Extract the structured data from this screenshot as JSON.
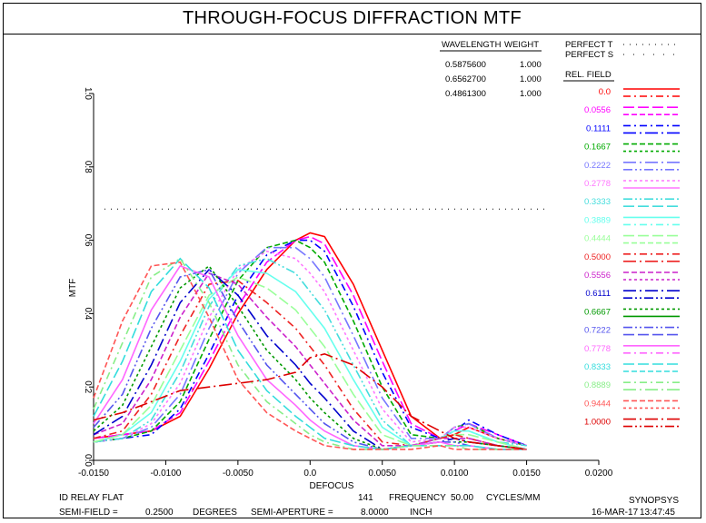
{
  "title": "THROUGH-FOCUS DIFFRACTION MTF",
  "chart_data": {
    "type": "line",
    "xlabel": "DEFOCUS",
    "ylabel": "MTF",
    "xlim": [
      -0.015,
      0.02
    ],
    "ylim": [
      0,
      1.0
    ],
    "x_ticks": [
      "-0.0150",
      "-0.0100",
      "-0.0050",
      "0.0",
      "0.0050",
      "0.0100",
      "0.0150",
      "0.0200"
    ],
    "y_ticks": [
      "0.0",
      "0.2",
      "0.4",
      "0.6",
      "0.8",
      "1.0"
    ],
    "perfect_level": 0.685,
    "series": [
      {
        "field": "0.0",
        "color": "#ff0000",
        "x": [
          -0.015,
          -0.013,
          -0.011,
          -0.009,
          -0.007,
          -0.005,
          -0.003,
          -0.001,
          0.0,
          0.001,
          0.003,
          0.005,
          0.007,
          0.009,
          0.01,
          0.011,
          0.013,
          0.015
        ],
        "y": [
          0.06,
          0.07,
          0.08,
          0.12,
          0.25,
          0.4,
          0.52,
          0.6,
          0.62,
          0.61,
          0.48,
          0.3,
          0.12,
          0.06,
          0.07,
          0.09,
          0.06,
          0.04
        ]
      },
      {
        "field": "0.0556",
        "color": "#ff00ff",
        "x": [
          -0.015,
          -0.013,
          -0.011,
          -0.009,
          -0.007,
          -0.005,
          -0.003,
          -0.001,
          0.0,
          0.001,
          0.003,
          0.005,
          0.007,
          0.009,
          0.01,
          0.011,
          0.013,
          0.015
        ],
        "y": [
          0.06,
          0.07,
          0.08,
          0.13,
          0.27,
          0.42,
          0.54,
          0.6,
          0.61,
          0.59,
          0.45,
          0.27,
          0.1,
          0.06,
          0.08,
          0.1,
          0.07,
          0.04
        ]
      },
      {
        "field": "0.1111",
        "color": "#0000ff",
        "x": [
          -0.015,
          -0.013,
          -0.011,
          -0.009,
          -0.007,
          -0.005,
          -0.003,
          -0.001,
          0.0,
          0.001,
          0.003,
          0.005,
          0.007,
          0.009,
          0.01,
          0.011,
          0.013,
          0.015
        ],
        "y": [
          0.05,
          0.06,
          0.07,
          0.14,
          0.29,
          0.45,
          0.56,
          0.6,
          0.6,
          0.57,
          0.42,
          0.24,
          0.09,
          0.06,
          0.08,
          0.11,
          0.07,
          0.04
        ]
      },
      {
        "field": "0.1667",
        "color": "#00aa00",
        "x": [
          -0.015,
          -0.013,
          -0.011,
          -0.009,
          -0.007,
          -0.005,
          -0.003,
          -0.001,
          0.0,
          0.001,
          0.003,
          0.005,
          0.007,
          0.009,
          0.01,
          0.011,
          0.013,
          0.015
        ],
        "y": [
          0.05,
          0.06,
          0.08,
          0.16,
          0.33,
          0.49,
          0.58,
          0.6,
          0.58,
          0.54,
          0.38,
          0.2,
          0.07,
          0.06,
          0.09,
          0.1,
          0.06,
          0.04
        ]
      },
      {
        "field": "0.2222",
        "color": "#7777ff",
        "x": [
          -0.015,
          -0.013,
          -0.011,
          -0.009,
          -0.007,
          -0.005,
          -0.003,
          -0.001,
          0.0,
          0.001,
          0.003,
          0.005,
          0.007,
          0.009,
          0.01,
          0.011,
          0.013,
          0.015
        ],
        "y": [
          0.05,
          0.06,
          0.09,
          0.18,
          0.36,
          0.51,
          0.58,
          0.58,
          0.55,
          0.5,
          0.34,
          0.17,
          0.06,
          0.06,
          0.09,
          0.1,
          0.06,
          0.04
        ]
      },
      {
        "field": "0.2778",
        "color": "#ff77ff",
        "x": [
          -0.015,
          -0.013,
          -0.011,
          -0.009,
          -0.007,
          -0.005,
          -0.003,
          -0.001,
          0.0,
          0.001,
          0.003,
          0.005,
          0.007,
          0.009,
          0.01,
          0.011,
          0.013,
          0.015
        ],
        "y": [
          0.05,
          0.06,
          0.1,
          0.21,
          0.39,
          0.52,
          0.57,
          0.55,
          0.51,
          0.46,
          0.3,
          0.14,
          0.05,
          0.06,
          0.09,
          0.09,
          0.06,
          0.04
        ]
      },
      {
        "field": "0.3333",
        "color": "#44dddd",
        "x": [
          -0.015,
          -0.013,
          -0.011,
          -0.009,
          -0.007,
          -0.005,
          -0.003,
          -0.001,
          0.0,
          0.001,
          0.003,
          0.005,
          0.007,
          0.009,
          0.01,
          0.011,
          0.013,
          0.015
        ],
        "y": [
          0.05,
          0.06,
          0.11,
          0.24,
          0.42,
          0.53,
          0.55,
          0.51,
          0.46,
          0.41,
          0.26,
          0.11,
          0.04,
          0.06,
          0.08,
          0.08,
          0.05,
          0.04
        ]
      },
      {
        "field": "0.3889",
        "color": "#66ffee",
        "x": [
          -0.015,
          -0.013,
          -0.011,
          -0.009,
          -0.007,
          -0.005,
          -0.003,
          -0.001,
          0.0,
          0.001,
          0.003,
          0.005,
          0.007,
          0.009,
          0.01,
          0.011,
          0.013,
          0.015
        ],
        "y": [
          0.05,
          0.07,
          0.13,
          0.27,
          0.44,
          0.52,
          0.51,
          0.46,
          0.41,
          0.36,
          0.22,
          0.09,
          0.04,
          0.06,
          0.08,
          0.08,
          0.05,
          0.03
        ]
      },
      {
        "field": "0.4444",
        "color": "#99ff99",
        "x": [
          -0.015,
          -0.013,
          -0.011,
          -0.009,
          -0.007,
          -0.005,
          -0.003,
          -0.001,
          0.0,
          0.001,
          0.003,
          0.005,
          0.007,
          0.009,
          0.01,
          0.011,
          0.013,
          0.015
        ],
        "y": [
          0.05,
          0.07,
          0.15,
          0.3,
          0.45,
          0.5,
          0.47,
          0.41,
          0.36,
          0.31,
          0.18,
          0.07,
          0.04,
          0.06,
          0.07,
          0.07,
          0.05,
          0.03
        ]
      },
      {
        "field": "0.5000",
        "color": "#ee2222",
        "x": [
          -0.015,
          -0.013,
          -0.011,
          -0.009,
          -0.007,
          -0.005,
          -0.003,
          -0.001,
          0.0,
          0.001,
          0.003,
          0.005,
          0.007,
          0.009,
          0.01,
          0.011,
          0.013,
          0.015
        ],
        "y": [
          0.06,
          0.08,
          0.18,
          0.34,
          0.48,
          0.49,
          0.43,
          0.36,
          0.31,
          0.26,
          0.14,
          0.05,
          0.04,
          0.06,
          0.07,
          0.06,
          0.04,
          0.03
        ]
      },
      {
        "field": "0.5556",
        "color": "#cc22cc",
        "x": [
          -0.015,
          -0.013,
          -0.011,
          -0.009,
          -0.007,
          -0.005,
          -0.003,
          -0.001,
          0.0,
          0.001,
          0.003,
          0.005,
          0.007,
          0.009,
          0.01,
          0.011,
          0.013,
          0.015
        ],
        "y": [
          0.07,
          0.1,
          0.22,
          0.39,
          0.51,
          0.48,
          0.39,
          0.31,
          0.26,
          0.21,
          0.11,
          0.04,
          0.04,
          0.06,
          0.06,
          0.06,
          0.04,
          0.03
        ]
      },
      {
        "field": "0.6111",
        "color": "#0000cc",
        "x": [
          -0.015,
          -0.013,
          -0.011,
          -0.009,
          -0.007,
          -0.005,
          -0.003,
          -0.001,
          0.0,
          0.001,
          0.003,
          0.005,
          0.007,
          0.009,
          0.01,
          0.011,
          0.013,
          0.015
        ],
        "y": [
          0.07,
          0.12,
          0.26,
          0.43,
          0.52,
          0.45,
          0.34,
          0.26,
          0.21,
          0.17,
          0.08,
          0.03,
          0.04,
          0.05,
          0.06,
          0.05,
          0.04,
          0.03
        ]
      },
      {
        "field": "0.6667",
        "color": "#009900",
        "x": [
          -0.015,
          -0.013,
          -0.011,
          -0.009,
          -0.007,
          -0.005,
          -0.003,
          -0.001,
          0.0,
          0.001,
          0.003,
          0.005,
          0.007,
          0.009,
          0.01,
          0.011,
          0.013,
          0.015
        ],
        "y": [
          0.08,
          0.15,
          0.31,
          0.47,
          0.53,
          0.42,
          0.3,
          0.22,
          0.17,
          0.13,
          0.06,
          0.03,
          0.04,
          0.05,
          0.05,
          0.05,
          0.04,
          0.03
        ]
      },
      {
        "field": "0.7222",
        "color": "#5555ee",
        "x": [
          -0.015,
          -0.013,
          -0.011,
          -0.009,
          -0.007,
          -0.005,
          -0.003,
          -0.001,
          0.0,
          0.001,
          0.003,
          0.005,
          0.007,
          0.009,
          0.01,
          0.011,
          0.013,
          0.015
        ],
        "y": [
          0.09,
          0.18,
          0.36,
          0.5,
          0.52,
          0.38,
          0.26,
          0.18,
          0.14,
          0.1,
          0.05,
          0.03,
          0.04,
          0.05,
          0.05,
          0.04,
          0.03,
          0.03
        ]
      },
      {
        "field": "0.7778",
        "color": "#ff66ff",
        "x": [
          -0.015,
          -0.013,
          -0.011,
          -0.009,
          -0.007,
          -0.005,
          -0.003,
          -0.001,
          0.0,
          0.001,
          0.003,
          0.005,
          0.007,
          0.009,
          0.01,
          0.011,
          0.013,
          0.015
        ],
        "y": [
          0.1,
          0.22,
          0.41,
          0.53,
          0.5,
          0.34,
          0.22,
          0.15,
          0.11,
          0.08,
          0.04,
          0.03,
          0.04,
          0.05,
          0.04,
          0.04,
          0.03,
          0.03
        ]
      },
      {
        "field": "0.8333",
        "color": "#33dddd",
        "x": [
          -0.015,
          -0.013,
          -0.011,
          -0.009,
          -0.007,
          -0.005,
          -0.003,
          -0.001,
          0.0,
          0.001,
          0.003,
          0.005,
          0.007,
          0.009,
          0.01,
          0.011,
          0.013,
          0.015
        ],
        "y": [
          0.12,
          0.27,
          0.46,
          0.55,
          0.47,
          0.3,
          0.19,
          0.12,
          0.09,
          0.06,
          0.04,
          0.03,
          0.04,
          0.04,
          0.04,
          0.04,
          0.03,
          0.03
        ]
      },
      {
        "field": "0.8889",
        "color": "#88ee88",
        "x": [
          -0.015,
          -0.013,
          -0.011,
          -0.009,
          -0.007,
          -0.005,
          -0.003,
          -0.001,
          0.0,
          0.001,
          0.003,
          0.005,
          0.007,
          0.009,
          0.01,
          0.011,
          0.013,
          0.015
        ],
        "y": [
          0.14,
          0.32,
          0.5,
          0.55,
          0.43,
          0.26,
          0.16,
          0.1,
          0.07,
          0.05,
          0.03,
          0.03,
          0.04,
          0.04,
          0.04,
          0.03,
          0.03,
          0.03
        ]
      },
      {
        "field": "0.9444",
        "color": "#ff5555",
        "x": [
          -0.015,
          -0.013,
          -0.011,
          -0.009,
          -0.007,
          -0.005,
          -0.003,
          -0.001,
          0.0,
          0.001,
          0.003,
          0.005,
          0.007,
          0.009,
          0.01,
          0.011,
          0.013,
          0.015
        ],
        "y": [
          0.17,
          0.38,
          0.53,
          0.54,
          0.39,
          0.22,
          0.13,
          0.08,
          0.06,
          0.04,
          0.03,
          0.03,
          0.03,
          0.04,
          0.03,
          0.03,
          0.03,
          0.03
        ]
      },
      {
        "field": "1.0000",
        "color": "#dd0000",
        "x": [
          -0.015,
          -0.013,
          -0.011,
          -0.009,
          -0.007,
          -0.005,
          -0.003,
          -0.001,
          0.0,
          0.001,
          0.003,
          0.005,
          0.007,
          0.009,
          0.01,
          0.011,
          0.013,
          0.015
        ],
        "y": [
          0.11,
          0.13,
          0.16,
          0.19,
          0.2,
          0.21,
          0.22,
          0.24,
          0.28,
          0.29,
          0.26,
          0.2,
          0.12,
          0.08,
          0.06,
          0.05,
          0.04,
          0.03
        ]
      }
    ]
  },
  "legend": {
    "wavelength_header": "WAVELENGTH",
    "weight_header": "WEIGHT",
    "wavelengths": [
      {
        "wl": "0.5875600",
        "w": "1.000"
      },
      {
        "wl": "0.6562700",
        "w": "1.000"
      },
      {
        "wl": "0.4861300",
        "w": "1.000"
      }
    ],
    "perfect_t": "PERFECT T",
    "perfect_s": "PERFECT S",
    "rel_field_header": "REL. FIELD",
    "fields": [
      "0.0",
      "0.0556",
      "0.1111",
      "0.1667",
      "0.2222",
      "0.2778",
      "0.3333",
      "0.3889",
      "0.4444",
      "0.5000",
      "0.5556",
      "0.6111",
      "0.6667",
      "0.7222",
      "0.7778",
      "0.8333",
      "0.8889",
      "0.9444",
      "1.0000"
    ],
    "field_colors": [
      "#ff0000",
      "#ff00ff",
      "#0000ff",
      "#00aa00",
      "#7777ff",
      "#ff77ff",
      "#44dddd",
      "#66ffee",
      "#99ff99",
      "#ee2222",
      "#cc22cc",
      "#0000cc",
      "#009900",
      "#5555ee",
      "#ff66ff",
      "#33dddd",
      "#88ee88",
      "#ff5555",
      "#dd0000"
    ]
  },
  "footer": {
    "lens_name": "ID RELAY FLAT",
    "count": "141",
    "frequency_label": "FREQUENCY",
    "frequency_value": "50.00",
    "frequency_unit": "CYCLES/MM",
    "program": "SYNOPSYS",
    "semi_field_label": "SEMI-FIELD =",
    "semi_field_value": "0.2500",
    "semi_field_unit": "DEGREES",
    "semi_aperture_label": "SEMI-APERTURE =",
    "semi_aperture_value": "8.0000",
    "semi_aperture_unit": "INCH",
    "date": "16-MAR-17",
    "time": "13:47:45"
  }
}
